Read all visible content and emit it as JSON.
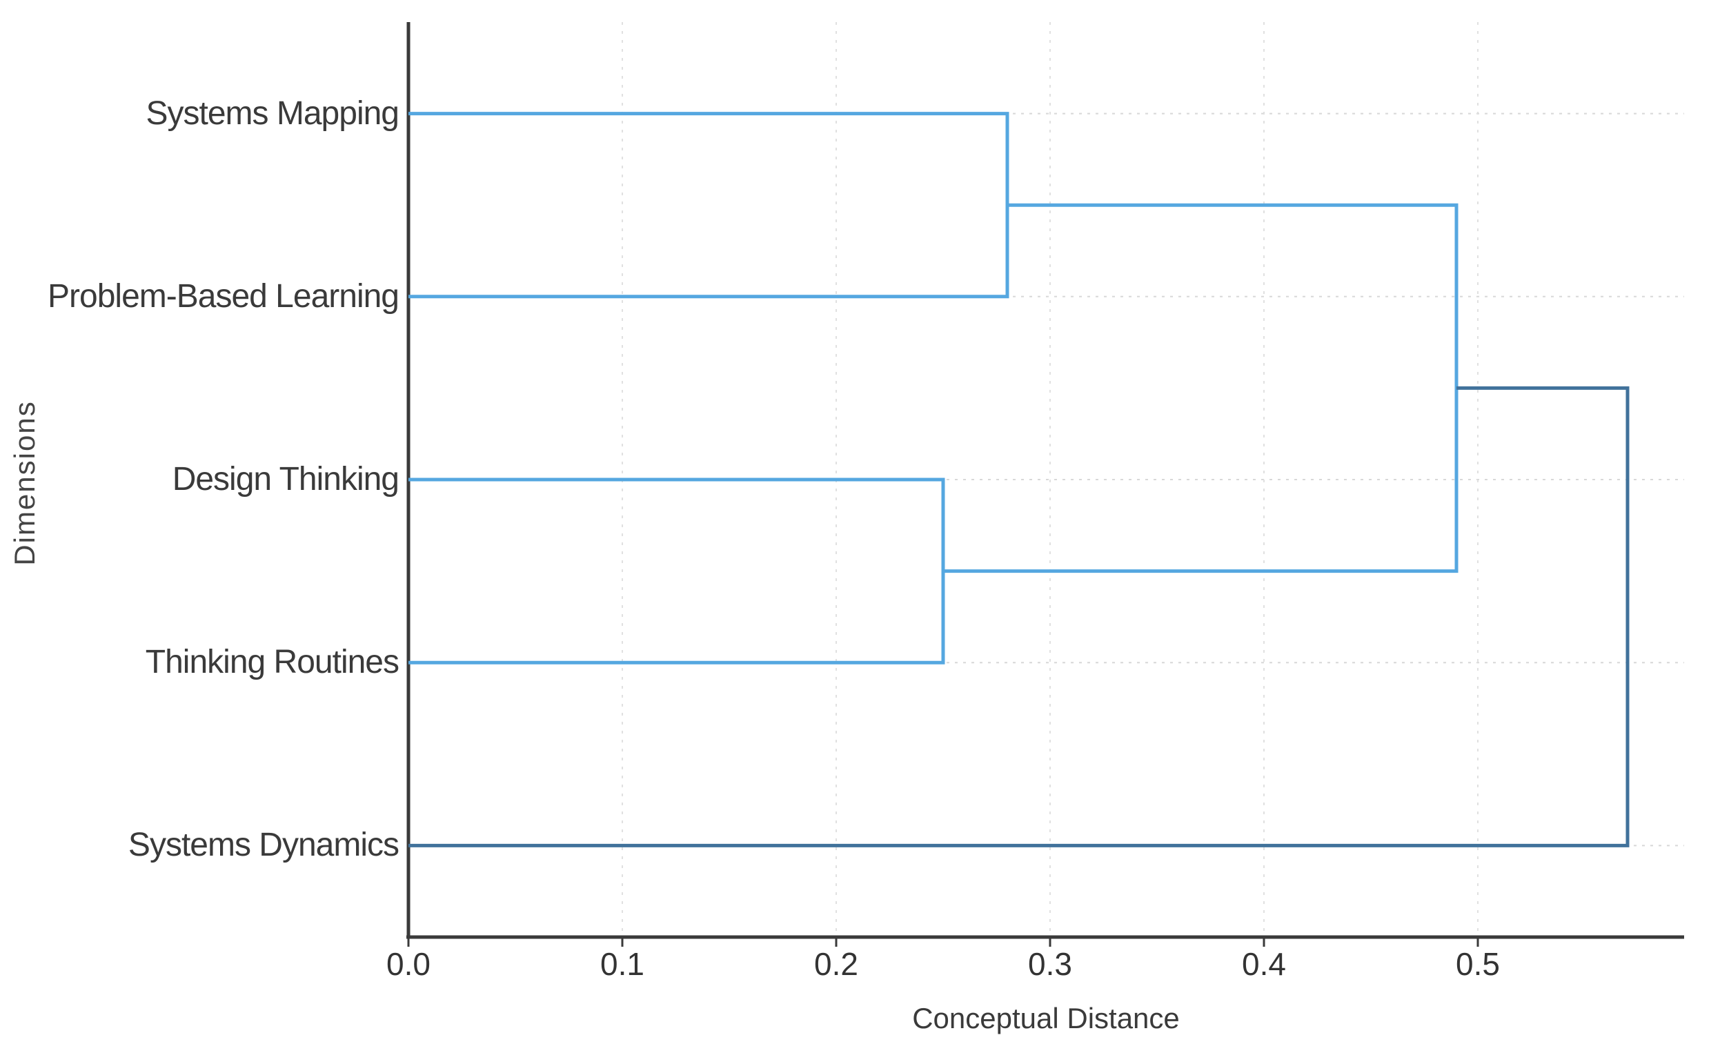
{
  "chart_data": {
    "type": "dendrogram",
    "orientation": "horizontal, tree grows right, leaf labels on left",
    "xlabel": "Conceptual Distance",
    "ylabel": "Dimensions",
    "xlim": [
      0,
      0.6
    ],
    "xticks": [
      {
        "label": "0.0",
        "value": 0.0
      },
      {
        "label": "0.1",
        "value": 0.1
      },
      {
        "label": "0.2",
        "value": 0.2
      },
      {
        "label": "0.3",
        "value": 0.3
      },
      {
        "label": "0.4",
        "value": 0.4
      },
      {
        "label": "0.5",
        "value": 0.5
      }
    ],
    "leaves": [
      "Systems Mapping",
      "Problem-Based Learning",
      "Design Thinking",
      "Thinking Routines",
      "Systems Dynamics"
    ],
    "merges": [
      {
        "children": [
          0,
          1
        ],
        "pair": [
          "Systems Mapping",
          "Problem-Based Learning"
        ],
        "distance": 0.28,
        "color": "link_light"
      },
      {
        "children": [
          2,
          3
        ],
        "pair": [
          "Design Thinking",
          "Thinking Routines"
        ],
        "distance": 0.25,
        "color": "link_light"
      },
      {
        "children": [
          5,
          6
        ],
        "pair": [
          "Systems Mapping + Problem-Based Learning cluster",
          "Design Thinking + Thinking Routines cluster"
        ],
        "distance": 0.49,
        "color": "link_light"
      },
      {
        "children": [
          7,
          4
        ],
        "pair": [
          "four-method cluster",
          "Systems Dynamics"
        ],
        "distance": 0.57,
        "color": "link_dark"
      }
    ],
    "grid": {
      "horizontal_dotted_at_leaves": true,
      "vertical_dashed_at_ticks": true
    },
    "legend": null,
    "colors": {
      "link_light": "#55a7e0",
      "link_dark": "#41729b",
      "axis": "#3a3a3a",
      "text": "#3a3a3a",
      "grid_horizontal": "#d8d8d8",
      "grid_vertical": "#e0e0e0"
    }
  }
}
